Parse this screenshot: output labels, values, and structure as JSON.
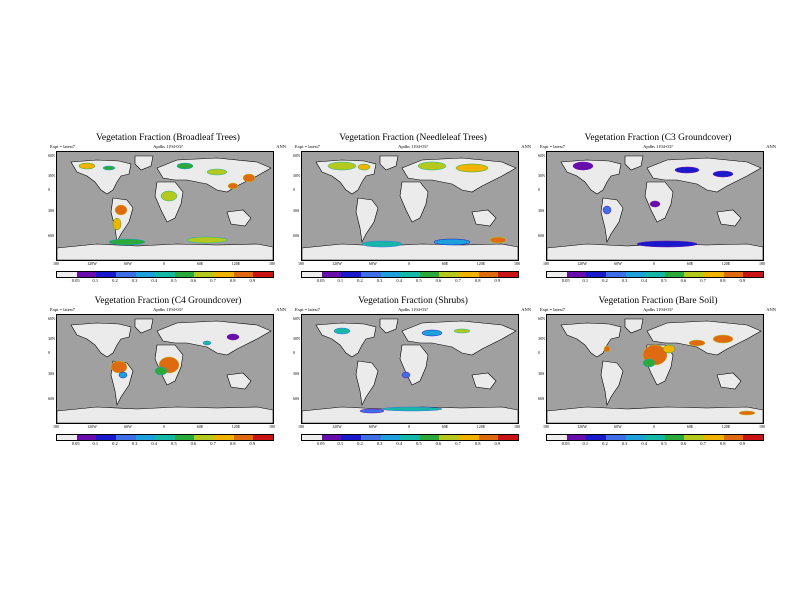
{
  "common": {
    "expt": "Expt = latest7",
    "case": "Apdhs   1194-03?",
    "season": "ANN",
    "lat_labels": [
      "60N",
      "30N",
      "0",
      "30S",
      "60S"
    ],
    "lon_labels": [
      "180",
      "120W",
      "60W",
      "0",
      "60E",
      "120E",
      "180"
    ],
    "colorbar_labels": [
      "0.05",
      "0.1",
      "0.2",
      "0.3",
      "0.4",
      "0.5",
      "0.6",
      "0.7",
      "0.8",
      "0.9"
    ],
    "colorbar_colors": [
      "#eeeeee",
      "#6a0dad",
      "#1a1acc",
      "#3f6fe6",
      "#1ea0dc",
      "#15b8a6",
      "#2aaa3a",
      "#b4c81e",
      "#f0b400",
      "#e06a10",
      "#c81414"
    ],
    "land_color": "#ebebeb",
    "ocean_color": "#a0a0a0"
  },
  "panels": [
    {
      "title": "Vegetation Fraction (Broadleaf Trees)"
    },
    {
      "title": "Vegetation Fraction (Needleleaf Trees)"
    },
    {
      "title": "Vegetation Fraction (C3 Groundcover)"
    },
    {
      "title": "Vegetation Fraction (C4 Groundcover)"
    },
    {
      "title": "Vegetation Fraction (Shrubs)"
    },
    {
      "title": "Vegetation Fraction (Bare Soil)"
    }
  ]
}
